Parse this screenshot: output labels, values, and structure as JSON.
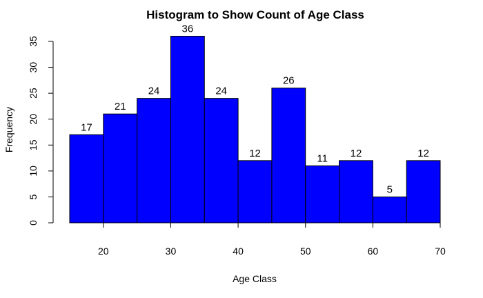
{
  "chart_data": {
    "type": "bar",
    "title": "Histogram to Show Count of Age Class",
    "xlabel": "Age Class",
    "ylabel": "Frequency",
    "bin_edges": [
      15,
      20,
      25,
      30,
      35,
      40,
      45,
      50,
      55,
      60,
      65,
      70
    ],
    "values": [
      17,
      21,
      24,
      36,
      24,
      12,
      26,
      11,
      12,
      5,
      12
    ],
    "data_labels": [
      "17",
      "21",
      "24",
      "36",
      "24",
      "12",
      "26",
      "11",
      "12",
      "5",
      "12"
    ],
    "x_ticks": [
      20,
      30,
      40,
      50,
      60,
      70
    ],
    "x_tick_labels": [
      "20",
      "30",
      "40",
      "50",
      "60",
      "70"
    ],
    "y_ticks": [
      0,
      5,
      10,
      15,
      20,
      25,
      30,
      35
    ],
    "y_tick_labels": [
      "0",
      "5",
      "10",
      "15",
      "20",
      "25",
      "30",
      "35"
    ],
    "xlim": [
      15,
      70
    ],
    "ylim": [
      0,
      35
    ],
    "grid": false,
    "legend": "none",
    "colors": {
      "bar_fill": "#0000ff",
      "bar_stroke": "#000000",
      "text": "#000000",
      "axis": "#000000"
    }
  }
}
